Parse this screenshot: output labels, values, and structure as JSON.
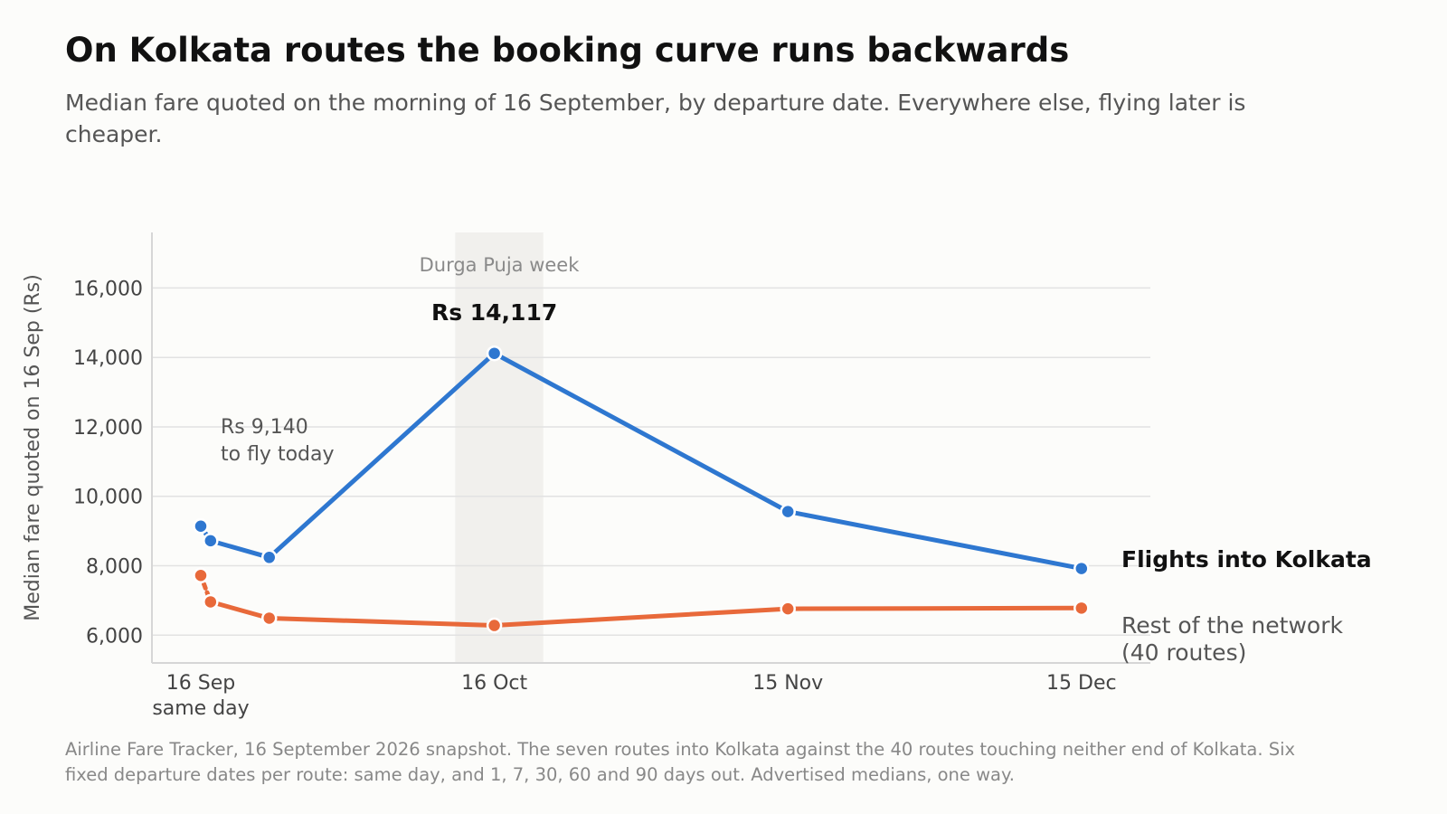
{
  "header": {
    "title": "On Kolkata routes the booking curve runs backwards",
    "subtitle": "Median fare quoted on the morning of 16 September, by departure date. Everywhere else, flying later is cheaper."
  },
  "footnote": "Airline Fare Tracker, 16 September 2026 snapshot. The seven routes into Kolkata against the 40 routes touching neither end of Kolkata. Six fixed departure dates per route: same day, and 1, 7, 30, 60 and 90 days out. Advertised medians, one way.",
  "colors": {
    "kolkata": "#2e77d0",
    "network": "#e8693a",
    "band": "#f1f0ed",
    "grid": "#e2e2e2",
    "axis": "#d6d6d6"
  },
  "chart_data": {
    "type": "line",
    "ylabel": "Median fare quoted on 16 Sep (Rs)",
    "xlabel": "",
    "days_out": [
      0,
      1,
      7,
      30,
      60,
      90
    ],
    "ylim": [
      5200,
      17600
    ],
    "yticks": [
      6000,
      8000,
      10000,
      12000,
      14000,
      16000
    ],
    "ytick_labels": [
      "6,000",
      "8,000",
      "10,000",
      "12,000",
      "14,000",
      "16,000"
    ],
    "xticks": [
      {
        "days_out": 0,
        "lines": [
          "16 Sep",
          "same day"
        ]
      },
      {
        "days_out": 30,
        "lines": [
          "16 Oct"
        ]
      },
      {
        "days_out": 60,
        "lines": [
          "15 Nov"
        ]
      },
      {
        "days_out": 90,
        "lines": [
          "15 Dec"
        ]
      }
    ],
    "grid": true,
    "highlight_band": {
      "from_days_out": 26,
      "to_days_out": 35,
      "label": "Durga Puja week"
    },
    "series": [
      {
        "name": "Flights into Kolkata",
        "key": "kolkata",
        "values": [
          9140,
          8720,
          8240,
          14117,
          9560,
          7920
        ]
      },
      {
        "name_lines": [
          "Rest of the network",
          "(40 routes)"
        ],
        "key": "network",
        "values": [
          7720,
          6960,
          6490,
          6280,
          6760,
          6780
        ]
      }
    ],
    "annotations": {
      "peak": "Rs 14,117",
      "same_day_lines": [
        "Rs 9,140",
        "to fly today"
      ]
    }
  }
}
